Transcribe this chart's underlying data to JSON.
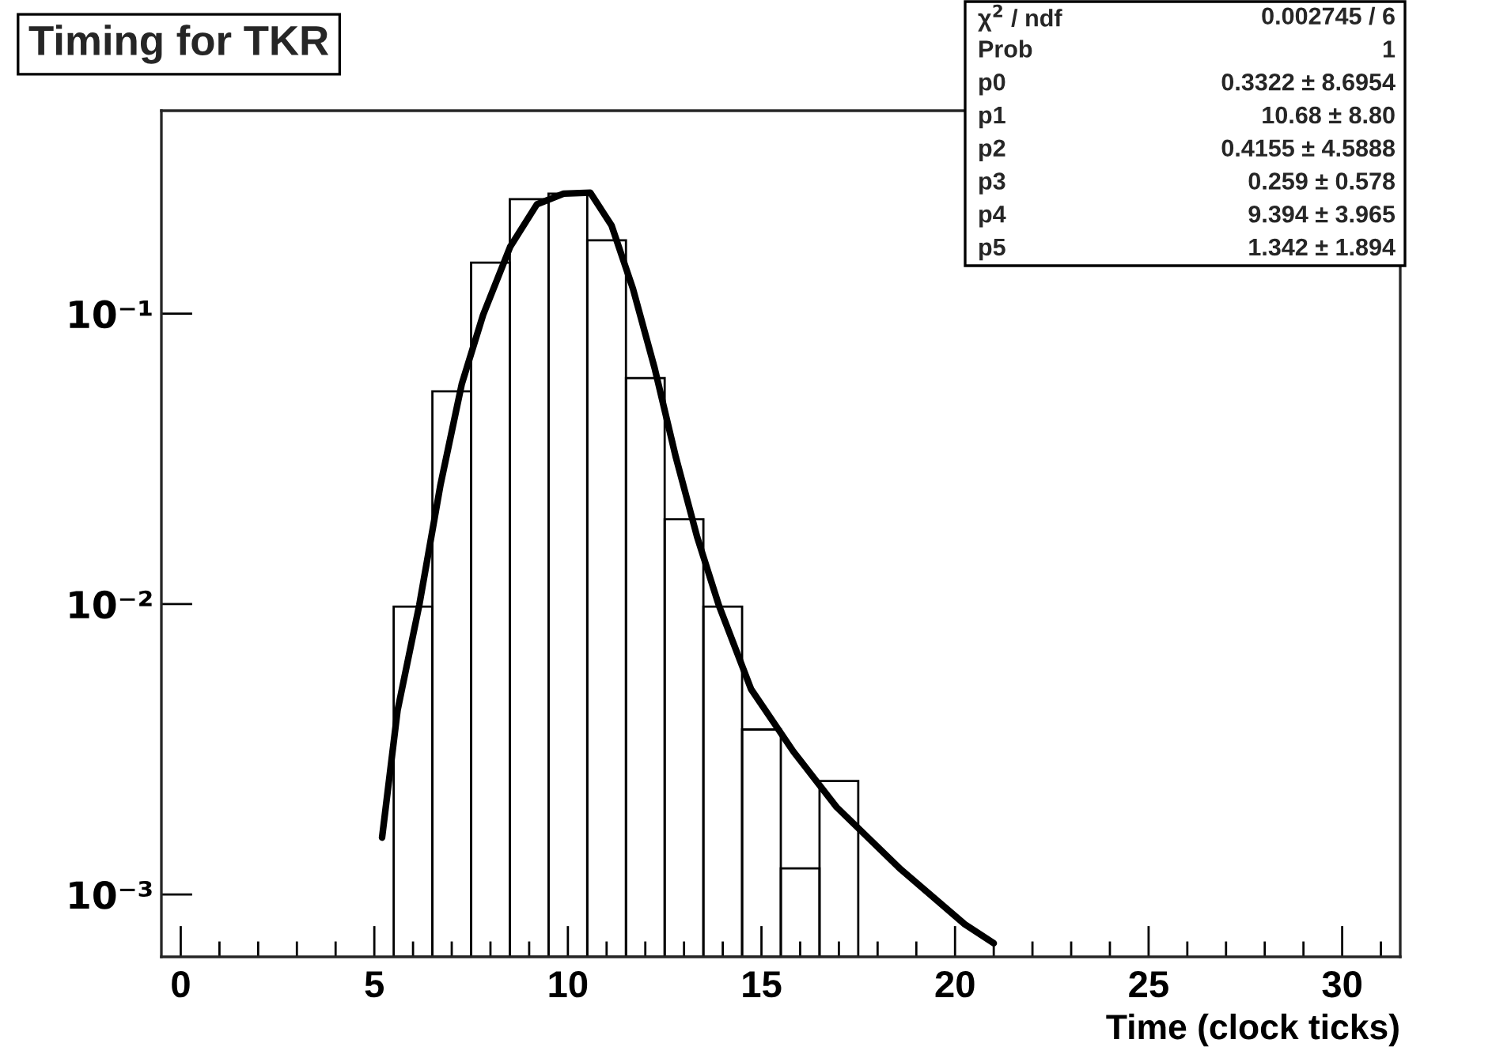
{
  "chart_data": {
    "type": "histogram",
    "title": "Timing for TKR",
    "xlabel": "Time (clock ticks)",
    "bins": [
      5.5,
      6.5,
      7.5,
      8.5,
      9.5,
      10.5,
      11.5,
      12.5,
      13.5,
      14.5,
      15.5,
      16.5,
      17.5
    ],
    "values": [
      0.0098,
      0.054,
      0.15,
      0.248,
      0.259,
      0.179,
      0.06,
      0.0196,
      0.0098,
      0.0037,
      0.00123,
      0.00246
    ],
    "color": "#000000",
    "series": [
      {
        "type": "line",
        "color": "#000000",
        "x": [
          5.2,
          5.6,
          6.16,
          6.71,
          7.26,
          7.81,
          8.51,
          9.2,
          9.89,
          10.58,
          11.13,
          11.68,
          12.24,
          12.79,
          13.34,
          13.9,
          14.73,
          15.83,
          16.94,
          18.6,
          20.25,
          21.0
        ],
        "values": [
          0.00157,
          0.0043,
          0.0099,
          0.0258,
          0.0573,
          0.099,
          0.17,
          0.238,
          0.259,
          0.261,
          0.201,
          0.122,
          0.065,
          0.032,
          0.017,
          0.0099,
          0.0051,
          0.0031,
          0.002,
          0.00122,
          0.00079,
          0.00068
        ]
      }
    ],
    "log": "y",
    "xlim": [
      -0.5,
      31.5
    ],
    "ylim": [
      0.00061,
      0.5
    ],
    "xticks": [
      0,
      5,
      10,
      15,
      20,
      25,
      30
    ],
    "yticks": [
      {
        "value": 0.001,
        "label": "10⁻³"
      },
      {
        "value": 0.01,
        "label": "10⁻²"
      },
      {
        "value": 0.1,
        "label": "10⁻¹"
      }
    ],
    "grid": false,
    "legend": false,
    "annotations": [
      [
        "χ$^{2}$ / ndf",
        "0.002745 / 6"
      ],
      [
        "Prob",
        "1"
      ],
      [
        "p0",
        "0.3322 ± 8.6954"
      ],
      [
        "p1",
        "10.68 ± 8.80"
      ],
      [
        "p2",
        "0.4155 ± 4.5888"
      ],
      [
        "p3",
        "0.259 ± 0.578"
      ],
      [
        "p4",
        "9.394 ± 3.965"
      ],
      [
        "p5",
        "1.342 ± 1.894"
      ]
    ]
  }
}
